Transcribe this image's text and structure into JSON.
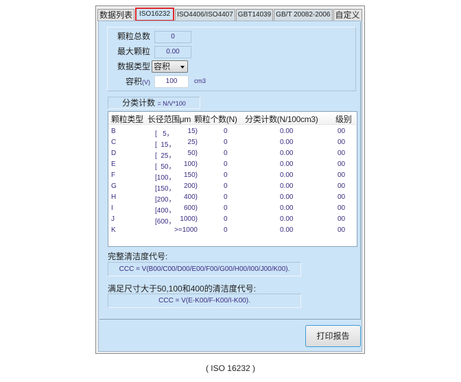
{
  "tabs": [
    "数据列表",
    "ISO16232",
    "ISO4406/ISO4407",
    "GBT14039",
    "GB/T 20082-2006",
    "自定义"
  ],
  "active_tab": "ISO16232",
  "info": {
    "total_label": "颗粒总数",
    "total_value": "0",
    "max_label": "最大颗粒",
    "max_value": "0.00",
    "type_label": "数据类型",
    "type_value": "容积",
    "volume_label": "容积",
    "volume_label_suffix": "(V)",
    "volume_value": "100",
    "volume_unit": "cm3"
  },
  "formula": {
    "label": "分类计数",
    "expr": "= N/V*100"
  },
  "table": {
    "headers": [
      "颗粒类型",
      "长径范围μm",
      "颗粒个数(N)",
      "分类计数(N/100cm3)",
      "级别"
    ],
    "rows": [
      {
        "type": "B",
        "range_lo": "[   5，",
        "range_hi": "15)",
        "n": "0",
        "count": "0.00",
        "level": "00"
      },
      {
        "type": "C",
        "range_lo": "[  15，",
        "range_hi": "25)",
        "n": "0",
        "count": "0.00",
        "level": "00"
      },
      {
        "type": "D",
        "range_lo": "[  25，",
        "range_hi": "50)",
        "n": "0",
        "count": "0.00",
        "level": "00"
      },
      {
        "type": "E",
        "range_lo": "[  50，",
        "range_hi": "100)",
        "n": "0",
        "count": "0.00",
        "level": "00"
      },
      {
        "type": "F",
        "range_lo": "[100，",
        "range_hi": "150)",
        "n": "0",
        "count": "0.00",
        "level": "00"
      },
      {
        "type": "G",
        "range_lo": "[150，",
        "range_hi": "200)",
        "n": "0",
        "count": "0.00",
        "level": "00"
      },
      {
        "type": "H",
        "range_lo": "[200，",
        "range_hi": "400)",
        "n": "0",
        "count": "0.00",
        "level": "00"
      },
      {
        "type": "I",
        "range_lo": "[400，",
        "range_hi": "600)",
        "n": "0",
        "count": "0.00",
        "level": "00"
      },
      {
        "type": "J",
        "range_lo": "[600，",
        "range_hi": "1000)",
        "n": "0",
        "count": "0.00",
        "level": "00"
      },
      {
        "type": "K",
        "range_lo": "",
        "range_hi": ">=1000",
        "n": "0",
        "count": "0.00",
        "level": "00"
      }
    ]
  },
  "full_code": {
    "label": "完整清洁度代号:",
    "value": "CCC = V(B00/C00/D00/E00/F00/G00/H00/I00/J00/K00)."
  },
  "partial_code": {
    "label": "满足尺寸大于50,100和400的清洁度代号:",
    "value": "CCC = V(E-K00/F-K00/I-K00)."
  },
  "print_button": "打印报告",
  "caption": "( ISO 16232 )"
}
